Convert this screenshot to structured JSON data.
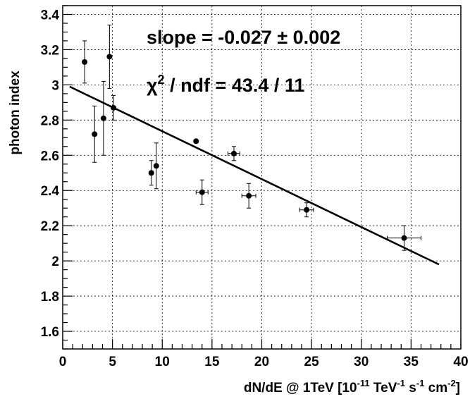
{
  "chart_data": {
    "type": "scatter",
    "title": "",
    "xlabel": "dN/dE @ 1TeV [10^-11 TeV^-1 s^-1 cm^-2]",
    "xlabel_parts": {
      "main": "dN/dE @ 1TeV [10",
      "exp1": "-11",
      "unit1": " TeV",
      "exp2": "-1",
      "unit2": " s",
      "exp3": "-1",
      "unit3": " cm",
      "exp4": "-2",
      "close": "]"
    },
    "ylabel": "photon index",
    "xlim": [
      0,
      40
    ],
    "ylim": [
      1.5,
      3.45
    ],
    "grid": true,
    "x_ticks": [
      0,
      5,
      10,
      15,
      20,
      25,
      30,
      35,
      40
    ],
    "x_tick_labels": [
      "0",
      "5",
      "10",
      "15",
      "20",
      "25",
      "30",
      "35",
      "40"
    ],
    "y_ticks": [
      1.6,
      1.8,
      2.0,
      2.2,
      2.4,
      2.6,
      2.8,
      3.0,
      3.2,
      3.4
    ],
    "y_tick_labels": [
      "1.6",
      "1.8",
      "2",
      "2.2",
      "2.4",
      "2.6",
      "2.8",
      "3",
      "3.2",
      "3.4"
    ],
    "points": [
      {
        "x": 2.2,
        "y": 3.13,
        "yerr": 0.12,
        "xerr": 0
      },
      {
        "x": 3.2,
        "y": 2.72,
        "yerr": 0.16,
        "xerr": 0
      },
      {
        "x": 4.1,
        "y": 2.81,
        "yerr": 0.21,
        "xerr": 0
      },
      {
        "x": 4.7,
        "y": 3.16,
        "yerr": 0.18,
        "xerr": 0
      },
      {
        "x": 5.1,
        "y": 2.87,
        "yerr": 0.07,
        "xerr": 0
      },
      {
        "x": 8.9,
        "y": 2.5,
        "yerr": 0.07,
        "xerr": 0
      },
      {
        "x": 9.4,
        "y": 2.54,
        "yerr": 0.13,
        "xerr": 0
      },
      {
        "x": 13.4,
        "y": 2.68,
        "yerr": 0,
        "xerr": 0
      },
      {
        "x": 14.0,
        "y": 2.39,
        "yerr": 0.07,
        "xerr": 0.6
      },
      {
        "x": 17.2,
        "y": 2.61,
        "yerr": 0.04,
        "xerr": 0.6
      },
      {
        "x": 18.7,
        "y": 2.37,
        "yerr": 0.07,
        "xerr": 0.7
      },
      {
        "x": 24.5,
        "y": 2.29,
        "yerr": 0.04,
        "xerr": 0.7
      },
      {
        "x": 34.3,
        "y": 2.13,
        "yerr": 0.07,
        "xerr": 1.7
      }
    ],
    "fit_line": {
      "x": [
        0.7,
        37.8
      ],
      "y": [
        2.99,
        1.98
      ]
    },
    "annotations": {
      "slope_label": "slope =  -0.027 ± 0.002",
      "chi_symbol": "χ",
      "chi_exp": "2",
      "chi_rest": " / ndf =  43.4 / 11"
    }
  }
}
